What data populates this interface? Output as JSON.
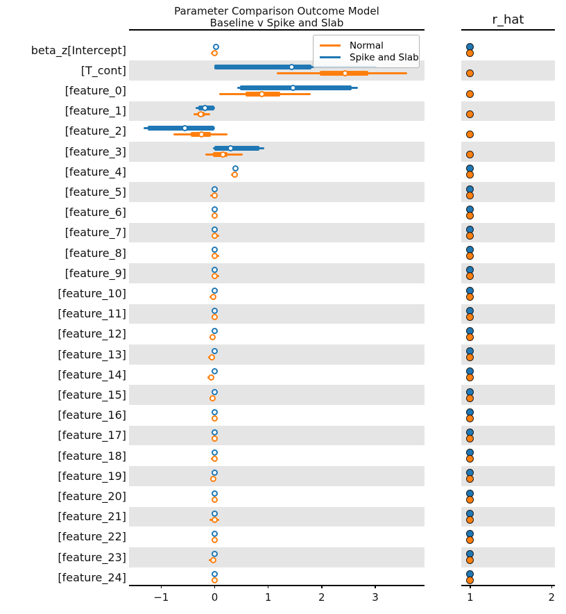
{
  "chart_data": {
    "type": "forest",
    "title": "Parameter Comparison Outcome Model\nBaseline v Spike and Slab",
    "title_lines": [
      "Parameter Comparison Outcome Model",
      "Baseline v Spike and Slab"
    ],
    "right_panel_title": "r_hat",
    "legend": {
      "position": "upper right",
      "entries": [
        {
          "name": "normal",
          "label": "Normal",
          "color": "#ff7f0e"
        },
        {
          "name": "spike_slab",
          "label": "Spike and Slab",
          "color": "#1f77b4"
        }
      ]
    },
    "colors": {
      "normal": "#ff7f0e",
      "spike_slab": "#1f77b4",
      "band": "#e5e5e5",
      "marker_face": "#ffffff"
    },
    "x_axis": {
      "tick_values": [
        -1,
        0,
        1,
        2,
        3
      ],
      "tick_labels": [
        "−1",
        "0",
        "1",
        "2",
        "3"
      ],
      "xlim": [
        -1.6,
        3.92
      ],
      "grid": false
    },
    "rhat_axis": {
      "tick_values": [
        1,
        2
      ],
      "tick_labels": [
        "1",
        "2"
      ],
      "xlim": [
        0.89,
        2.04
      ],
      "grid": false
    },
    "rows": [
      {
        "label": "beta_z[Intercept]",
        "shaded": false,
        "spike_slab": {
          "median": 0.02,
          "hdi": [
            0.02,
            0.02
          ],
          "iqr": null
        },
        "normal": {
          "median": 0.0,
          "hdi": [
            -0.07,
            0.01
          ],
          "iqr": null
        },
        "rhat": {
          "spike_slab": 1.0,
          "normal": 1.0
        }
      },
      {
        "label": "[T_cont]",
        "shaded": true,
        "spike_slab": {
          "median": 1.44,
          "hdi": [
            0.0,
            3.03
          ],
          "iqr": [
            0.0,
            1.81
          ]
        },
        "normal": {
          "median": 2.44,
          "hdi": [
            1.16,
            3.6
          ],
          "iqr": [
            1.96,
            2.87
          ]
        },
        "rhat": {
          "spike_slab": null,
          "normal": 1.0
        }
      },
      {
        "label": "[feature_0]",
        "shaded": false,
        "spike_slab": {
          "median": 1.47,
          "hdi": [
            0.42,
            2.68
          ],
          "iqr": [
            0.47,
            2.56
          ]
        },
        "normal": {
          "median": 0.88,
          "hdi": [
            0.08,
            1.8
          ],
          "iqr": [
            0.58,
            1.22
          ]
        },
        "rhat": {
          "spike_slab": null,
          "normal": 1.0
        }
      },
      {
        "label": "[feature_1]",
        "shaded": true,
        "spike_slab": {
          "median": -0.18,
          "hdi": [
            -0.35,
            0.01
          ],
          "iqr": [
            -0.31,
            0.0
          ]
        },
        "normal": {
          "median": -0.26,
          "hdi": [
            -0.39,
            -0.09
          ],
          "iqr": [
            -0.32,
            -0.19
          ]
        },
        "rhat": {
          "spike_slab": null,
          "normal": 1.0
        }
      },
      {
        "label": "[feature_2]",
        "shaded": false,
        "spike_slab": {
          "median": -0.56,
          "hdi": [
            -1.33,
            0.01
          ],
          "iqr": [
            -1.25,
            -0.01
          ]
        },
        "normal": {
          "median": -0.24,
          "hdi": [
            -0.77,
            0.24
          ],
          "iqr": [
            -0.45,
            -0.07
          ]
        },
        "rhat": {
          "spike_slab": null,
          "normal": 1.0
        }
      },
      {
        "label": "[feature_3]",
        "shaded": true,
        "spike_slab": {
          "median": 0.3,
          "hdi": [
            -0.03,
            0.93
          ],
          "iqr": [
            0.0,
            0.84
          ]
        },
        "normal": {
          "median": 0.15,
          "hdi": [
            -0.18,
            0.52
          ],
          "iqr": [
            -0.03,
            0.24
          ]
        },
        "rhat": {
          "spike_slab": null,
          "normal": 1.0
        }
      },
      {
        "label": "[feature_4]",
        "shaded": false,
        "spike_slab": {
          "median": 0.39,
          "hdi": [
            0.39,
            0.39
          ],
          "iqr": null
        },
        "normal": {
          "median": 0.37,
          "hdi": [
            0.3,
            0.4
          ],
          "iqr": null
        },
        "rhat": {
          "spike_slab": 1.0,
          "normal": 1.0
        }
      },
      {
        "label": "[feature_5]",
        "shaded": true,
        "spike_slab": {
          "median": 0.0,
          "hdi": [
            0.0,
            0.0
          ],
          "iqr": null
        },
        "normal": {
          "median": 0.0,
          "hdi": [
            -0.08,
            0.02
          ],
          "iqr": null
        },
        "rhat": {
          "spike_slab": 1.0,
          "normal": 1.0
        }
      },
      {
        "label": "[feature_6]",
        "shaded": false,
        "spike_slab": {
          "median": 0.0,
          "hdi": [
            0.0,
            0.0
          ],
          "iqr": null
        },
        "normal": {
          "median": 0.0,
          "hdi": [
            -0.06,
            0.02
          ],
          "iqr": null
        },
        "rhat": {
          "spike_slab": 1.0,
          "normal": 1.0
        }
      },
      {
        "label": "[feature_7]",
        "shaded": true,
        "spike_slab": {
          "median": 0.0,
          "hdi": [
            0.0,
            0.0
          ],
          "iqr": null
        },
        "normal": {
          "median": 0.0,
          "hdi": [
            -0.02,
            0.08
          ],
          "iqr": null
        },
        "rhat": {
          "spike_slab": 1.0,
          "normal": 1.0
        }
      },
      {
        "label": "[feature_8]",
        "shaded": false,
        "spike_slab": {
          "median": 0.0,
          "hdi": [
            0.0,
            0.0
          ],
          "iqr": null
        },
        "normal": {
          "median": 0.0,
          "hdi": [
            -0.02,
            0.08
          ],
          "iqr": null
        },
        "rhat": {
          "spike_slab": 1.0,
          "normal": 1.0
        }
      },
      {
        "label": "[feature_9]",
        "shaded": true,
        "spike_slab": {
          "median": 0.0,
          "hdi": [
            0.0,
            0.0
          ],
          "iqr": null
        },
        "normal": {
          "median": 0.0,
          "hdi": [
            -0.02,
            0.08
          ],
          "iqr": null
        },
        "rhat": {
          "spike_slab": 1.0,
          "normal": 1.0
        }
      },
      {
        "label": "[feature_10]",
        "shaded": false,
        "spike_slab": {
          "median": 0.0,
          "hdi": [
            0.0,
            0.0
          ],
          "iqr": null
        },
        "normal": {
          "median": -0.03,
          "hdi": [
            -0.1,
            0.01
          ],
          "iqr": null
        },
        "rhat": {
          "spike_slab": 1.0,
          "normal": 1.0
        }
      },
      {
        "label": "[feature_11]",
        "shaded": true,
        "spike_slab": {
          "median": 0.0,
          "hdi": [
            0.0,
            0.0
          ],
          "iqr": null
        },
        "normal": {
          "median": 0.0,
          "hdi": [
            -0.06,
            0.02
          ],
          "iqr": null
        },
        "rhat": {
          "spike_slab": 1.0,
          "normal": 1.0
        }
      },
      {
        "label": "[feature_12]",
        "shaded": false,
        "spike_slab": {
          "median": 0.0,
          "hdi": [
            0.0,
            0.0
          ],
          "iqr": null
        },
        "normal": {
          "median": -0.04,
          "hdi": [
            -0.1,
            0.01
          ],
          "iqr": null
        },
        "rhat": {
          "spike_slab": 1.0,
          "normal": 1.0
        }
      },
      {
        "label": "[feature_13]",
        "shaded": true,
        "spike_slab": {
          "median": 0.0,
          "hdi": [
            0.0,
            0.0
          ],
          "iqr": null
        },
        "normal": {
          "median": -0.05,
          "hdi": [
            -0.12,
            0.01
          ],
          "iqr": null
        },
        "rhat": {
          "spike_slab": 1.0,
          "normal": 1.0
        }
      },
      {
        "label": "[feature_14]",
        "shaded": false,
        "spike_slab": {
          "median": 0.0,
          "hdi": [
            0.0,
            0.0
          ],
          "iqr": null
        },
        "normal": {
          "median": -0.07,
          "hdi": [
            -0.14,
            0.0
          ],
          "iqr": null
        },
        "rhat": {
          "spike_slab": 1.0,
          "normal": 1.0
        }
      },
      {
        "label": "[feature_15]",
        "shaded": true,
        "spike_slab": {
          "median": 0.0,
          "hdi": [
            0.0,
            0.0
          ],
          "iqr": null
        },
        "normal": {
          "median": -0.04,
          "hdi": [
            -0.1,
            0.02
          ],
          "iqr": null
        },
        "rhat": {
          "spike_slab": 1.0,
          "normal": 1.0
        }
      },
      {
        "label": "[feature_16]",
        "shaded": false,
        "spike_slab": {
          "median": 0.0,
          "hdi": [
            0.0,
            0.0
          ],
          "iqr": null
        },
        "normal": {
          "median": 0.0,
          "hdi": [
            -0.05,
            0.03
          ],
          "iqr": null
        },
        "rhat": {
          "spike_slab": 1.0,
          "normal": 1.0
        }
      },
      {
        "label": "[feature_17]",
        "shaded": true,
        "spike_slab": {
          "median": 0.0,
          "hdi": [
            0.0,
            0.0
          ],
          "iqr": null
        },
        "normal": {
          "median": 0.0,
          "hdi": [
            -0.06,
            0.04
          ],
          "iqr": null
        },
        "rhat": {
          "spike_slab": 1.0,
          "normal": 1.0
        }
      },
      {
        "label": "[feature_18]",
        "shaded": false,
        "spike_slab": {
          "median": 0.0,
          "hdi": [
            0.0,
            0.0
          ],
          "iqr": null
        },
        "normal": {
          "median": 0.0,
          "hdi": [
            -0.07,
            0.02
          ],
          "iqr": null
        },
        "rhat": {
          "spike_slab": 1.0,
          "normal": 1.0
        }
      },
      {
        "label": "[feature_19]",
        "shaded": true,
        "spike_slab": {
          "median": 0.0,
          "hdi": [
            0.0,
            0.0
          ],
          "iqr": null
        },
        "normal": {
          "median": -0.02,
          "hdi": [
            -0.09,
            0.02
          ],
          "iqr": null
        },
        "rhat": {
          "spike_slab": 1.0,
          "normal": 1.0
        }
      },
      {
        "label": "[feature_20]",
        "shaded": false,
        "spike_slab": {
          "median": 0.0,
          "hdi": [
            0.0,
            0.0
          ],
          "iqr": null
        },
        "normal": {
          "median": 0.0,
          "hdi": [
            -0.05,
            0.03
          ],
          "iqr": null
        },
        "rhat": {
          "spike_slab": 1.0,
          "normal": 1.0
        }
      },
      {
        "label": "[feature_21]",
        "shaded": true,
        "spike_slab": {
          "median": 0.0,
          "hdi": [
            0.0,
            0.0
          ],
          "iqr": null
        },
        "normal": {
          "median": 0.0,
          "hdi": [
            -0.1,
            0.08
          ],
          "iqr": null
        },
        "rhat": {
          "spike_slab": 1.0,
          "normal": 1.0
        }
      },
      {
        "label": "[feature_22]",
        "shaded": false,
        "spike_slab": {
          "median": 0.0,
          "hdi": [
            0.0,
            0.0
          ],
          "iqr": null
        },
        "normal": {
          "median": 0.0,
          "hdi": [
            -0.06,
            0.03
          ],
          "iqr": null
        },
        "rhat": {
          "spike_slab": 1.0,
          "normal": 1.0
        }
      },
      {
        "label": "[feature_23]",
        "shaded": true,
        "spike_slab": {
          "median": 0.0,
          "hdi": [
            0.0,
            0.0
          ],
          "iqr": null
        },
        "normal": {
          "median": -0.03,
          "hdi": [
            -0.11,
            0.01
          ],
          "iqr": null
        },
        "rhat": {
          "spike_slab": 1.0,
          "normal": 1.0
        }
      },
      {
        "label": "[feature_24]",
        "shaded": false,
        "spike_slab": {
          "median": 0.0,
          "hdi": [
            0.0,
            0.0
          ],
          "iqr": null
        },
        "normal": {
          "median": 0.0,
          "hdi": [
            -0.06,
            0.03
          ],
          "iqr": null
        },
        "rhat": {
          "spike_slab": 1.0,
          "normal": 1.0
        }
      }
    ]
  }
}
